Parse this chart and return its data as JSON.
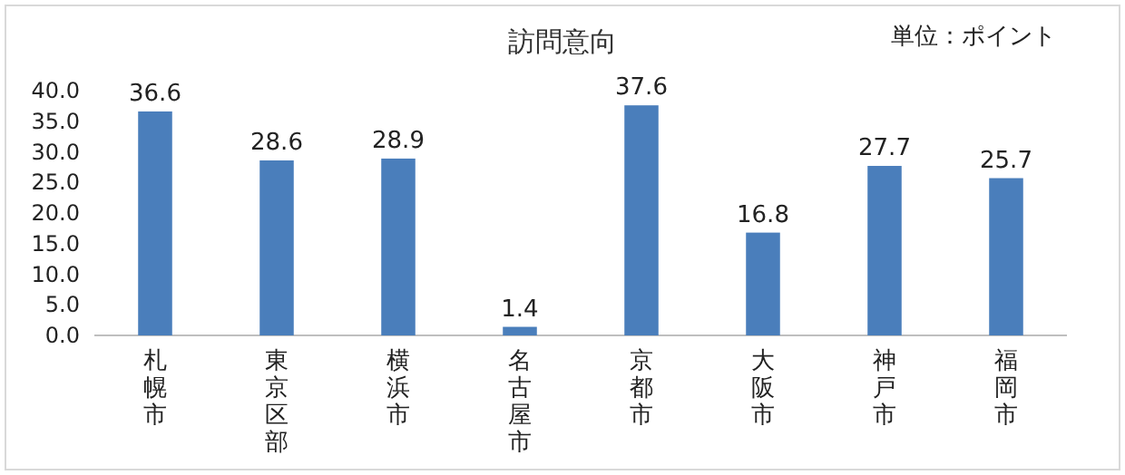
{
  "chart_data": {
    "type": "bar",
    "title": "訪問意向",
    "annotations": [
      "単位：ポイント"
    ],
    "categories": [
      "札幌市",
      "東京区部",
      "横浜市",
      "名古屋市",
      "京都市",
      "大阪市",
      "神戸市",
      "福岡市"
    ],
    "values": [
      36.6,
      28.6,
      28.9,
      1.4,
      37.6,
      16.8,
      27.7,
      25.7
    ],
    "color": "#4a7ebb",
    "data_labels": true,
    "ylim": [
      0,
      40
    ],
    "yticks": [
      {
        "value": 0,
        "label": "0.0"
      },
      {
        "value": 5,
        "label": "5.0"
      },
      {
        "value": 10,
        "label": "10.0"
      },
      {
        "value": 15,
        "label": "15.0"
      },
      {
        "value": 20,
        "label": "20.0"
      },
      {
        "value": 25,
        "label": "25.0"
      },
      {
        "value": 30,
        "label": "30.0"
      },
      {
        "value": 35,
        "label": "35.0"
      },
      {
        "value": 40,
        "label": "40.0"
      }
    ]
  }
}
